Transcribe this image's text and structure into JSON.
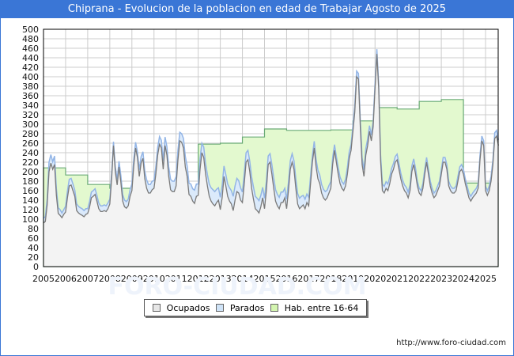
{
  "title": "Chiprana - Evolucion de la poblacion en edad de Trabajar Agosto de 2025",
  "footer_url": "http://www.foro-ciudad.com",
  "watermark": "FORO-CIUDAD.COM",
  "legend": [
    {
      "label": "Ocupados",
      "color": "#e6e6e6"
    },
    {
      "label": "Parados",
      "color": "#cfe3f7"
    },
    {
      "label": "Hab. entre 16-64",
      "color": "#d4f5b0"
    }
  ],
  "colors": {
    "title_bg": "#3a76d6",
    "hab_fill": "#e3f9cf",
    "hab_line": "#6aaa76",
    "parados_fill": "#dbeafb",
    "parados_line": "#93b5e6",
    "ocupados_fill": "#f3f3f3",
    "ocupados_line": "#7a7a7a",
    "grid": "#cccccc"
  },
  "chart_data": {
    "type": "area",
    "title": "Chiprana - Evolucion de la poblacion en edad de Trabajar Agosto de 2025",
    "xlabel": "",
    "ylabel": "",
    "ylim": [
      0,
      500
    ],
    "yticks": [
      0,
      20,
      40,
      60,
      80,
      100,
      120,
      140,
      160,
      180,
      200,
      220,
      240,
      260,
      280,
      300,
      320,
      340,
      360,
      380,
      400,
      420,
      440,
      460,
      480,
      500
    ],
    "xticks": [
      "2005",
      "2006",
      "2007",
      "2008",
      "2009",
      "2010",
      "2011",
      "2012",
      "2013",
      "2014",
      "2015",
      "2016",
      "2017",
      "2018",
      "2019",
      "2020",
      "2021",
      "2022",
      "2023",
      "2024",
      "2025"
    ],
    "grid": true,
    "legend_position": "bottom",
    "series": [
      {
        "name": "Hab. entre 16-64",
        "frequency": "annual",
        "x": [
          2005,
          2006,
          2007,
          2008,
          2009,
          2010,
          2011,
          2012,
          2013,
          2014,
          2015,
          2016,
          2017,
          2018,
          2019,
          2020,
          2021,
          2022,
          2023,
          2024,
          2025
        ],
        "values": [
          208,
          193,
          173,
          165,
          150,
          148,
          150,
          258,
          260,
          273,
          290,
          287,
          287,
          288,
          307,
          335,
          332,
          348,
          352,
          176,
          176
        ]
      },
      {
        "name": "Ocupados",
        "frequency": "monthly",
        "start": "2005-01",
        "values": [
          92,
          95,
          130,
          200,
          218,
          205,
          215,
          150,
          112,
          108,
          103,
          110,
          115,
          145,
          170,
          172,
          160,
          148,
          118,
          113,
          110,
          108,
          105,
          110,
          112,
          125,
          145,
          148,
          152,
          138,
          122,
          116,
          116,
          118,
          116,
          122,
          132,
          185,
          255,
          200,
          172,
          210,
          178,
          138,
          126,
          123,
          128,
          148,
          160,
          212,
          250,
          230,
          190,
          218,
          228,
          185,
          165,
          155,
          155,
          162,
          165,
          195,
          235,
          258,
          250,
          205,
          255,
          235,
          190,
          162,
          158,
          158,
          170,
          225,
          265,
          262,
          250,
          210,
          190,
          152,
          148,
          138,
          133,
          148,
          150,
          205,
          240,
          230,
          195,
          170,
          148,
          138,
          132,
          128,
          135,
          140,
          120,
          145,
          190,
          170,
          148,
          138,
          132,
          118,
          140,
          158,
          155,
          140,
          135,
          175,
          220,
          225,
          200,
          165,
          142,
          122,
          118,
          113,
          126,
          145,
          122,
          160,
          215,
          220,
          195,
          165,
          138,
          128,
          122,
          135,
          135,
          145,
          122,
          160,
          205,
          220,
          205,
          165,
          132,
          122,
          126,
          130,
          122,
          135,
          128,
          175,
          220,
          250,
          210,
          185,
          175,
          155,
          145,
          140,
          145,
          155,
          165,
          215,
          245,
          220,
          195,
          175,
          165,
          160,
          170,
          195,
          228,
          245,
          285,
          325,
          400,
          395,
          295,
          215,
          190,
          235,
          255,
          285,
          265,
          295,
          375,
          448,
          375,
          225,
          160,
          155,
          165,
          160,
          175,
          195,
          205,
          220,
          225,
          205,
          185,
          170,
          160,
          155,
          145,
          160,
          200,
          215,
          195,
          170,
          155,
          150,
          165,
          195,
          220,
          195,
          170,
          155,
          145,
          150,
          160,
          170,
          195,
          220,
          220,
          205,
          170,
          160,
          155,
          155,
          160,
          180,
          200,
          205,
          195,
          175,
          160,
          145,
          138,
          145,
          150,
          155,
          165,
          225,
          265,
          255,
          160,
          150,
          160,
          180,
          215,
          270,
          275,
          255
        ]
      },
      {
        "name": "Parados",
        "frequency": "monthly",
        "start": "2005-01",
        "values": [
          10,
          10,
          12,
          20,
          18,
          16,
          18,
          14,
          12,
          12,
          10,
          10,
          12,
          14,
          14,
          14,
          14,
          13,
          14,
          14,
          14,
          14,
          13,
          12,
          10,
          12,
          12,
          12,
          12,
          12,
          12,
          12,
          12,
          12,
          12,
          12,
          10,
          10,
          8,
          10,
          12,
          12,
          14,
          14,
          14,
          14,
          14,
          14,
          14,
          14,
          12,
          12,
          14,
          14,
          14,
          16,
          18,
          18,
          18,
          18,
          16,
          16,
          16,
          16,
          16,
          18,
          18,
          18,
          20,
          22,
          22,
          22,
          20,
          20,
          18,
          18,
          20,
          22,
          22,
          24,
          26,
          26,
          28,
          26,
          24,
          22,
          20,
          22,
          22,
          24,
          26,
          28,
          30,
          30,
          28,
          26,
          26,
          26,
          22,
          24,
          26,
          28,
          28,
          30,
          30,
          28,
          26,
          26,
          22,
          22,
          20,
          20,
          22,
          24,
          26,
          26,
          26,
          26,
          24,
          22,
          22,
          20,
          18,
          18,
          20,
          22,
          24,
          24,
          24,
          22,
          22,
          20,
          20,
          18,
          18,
          18,
          18,
          20,
          22,
          22,
          22,
          20,
          20,
          18,
          18,
          16,
          14,
          14,
          16,
          18,
          18,
          18,
          18,
          18,
          16,
          16,
          14,
          14,
          12,
          12,
          14,
          14,
          14,
          14,
          14,
          14,
          14,
          12,
          12,
          12,
          12,
          12,
          14,
          14,
          14,
          14,
          14,
          12,
          12,
          12,
          10,
          10,
          10,
          12,
          14,
          14,
          14,
          14,
          14,
          12,
          12,
          12,
          12,
          12,
          12,
          12,
          12,
          12,
          12,
          12,
          12,
          12,
          12,
          10,
          10,
          10,
          10,
          10,
          10,
          10,
          10,
          10,
          10,
          10,
          10,
          10,
          10,
          10,
          10,
          10,
          10,
          10,
          10,
          10,
          10,
          10,
          10,
          10,
          10,
          10,
          10,
          10,
          10,
          10,
          10,
          10,
          10,
          10,
          10,
          10,
          10,
          10,
          10,
          10,
          10,
          12,
          12,
          12
        ]
      }
    ]
  }
}
